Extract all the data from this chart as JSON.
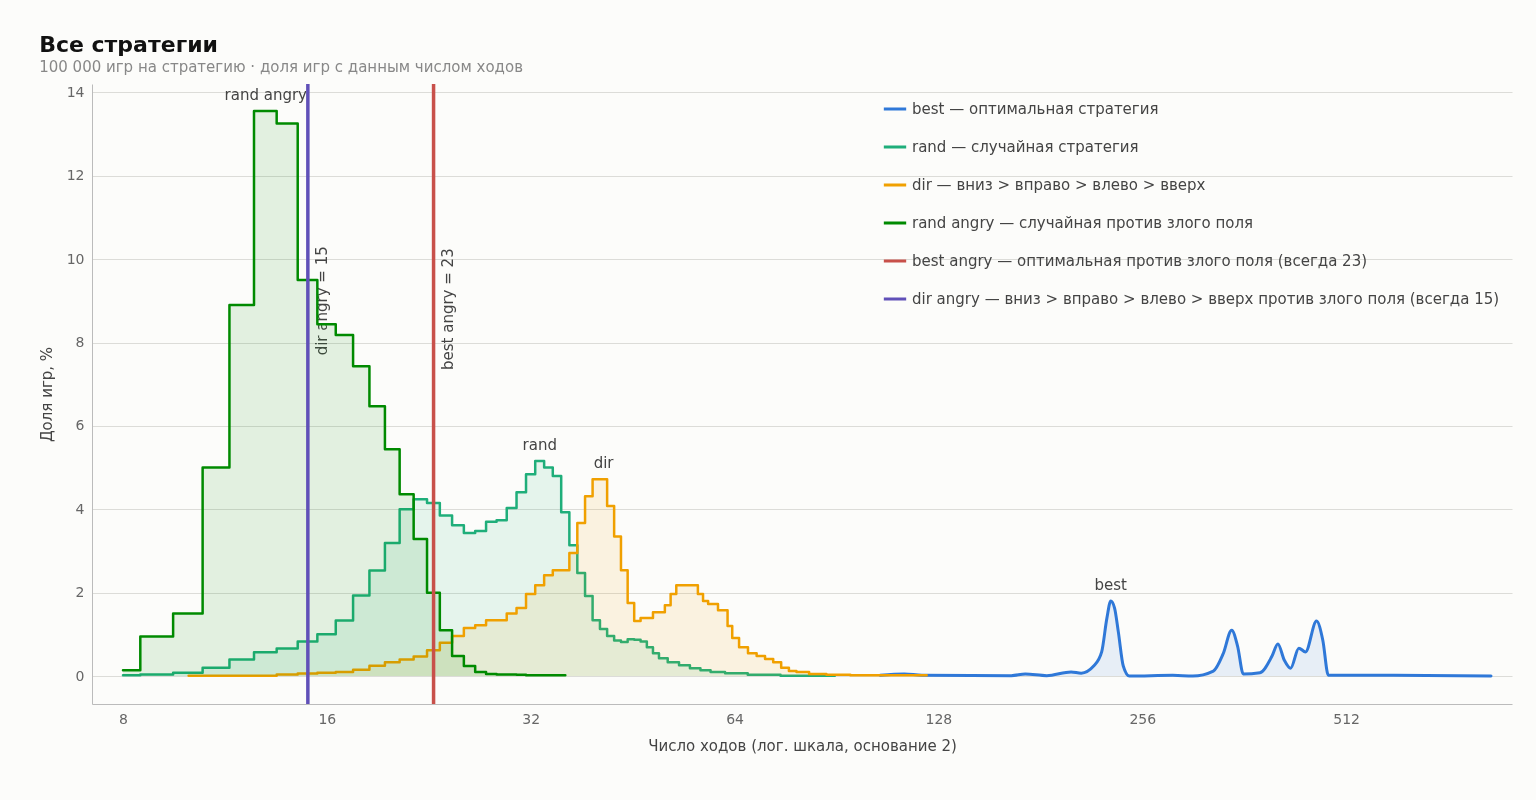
{
  "chart_data": {
    "type": "step",
    "title": "Все стратегии",
    "subtitle": "100 000 игр на стратегию · доля игр с данным числом ходов",
    "xlabel": "Число ходов (лог. шкала, основание 2)",
    "ylabel": "Доля игр, %",
    "log": "x",
    "xlim": [
      7.2,
      900
    ],
    "xticks": [
      8,
      16,
      32,
      64,
      128,
      256,
      512
    ],
    "ylim": [
      -0.67,
      14.2
    ],
    "yticks": [
      0,
      2,
      4,
      6,
      8,
      10,
      12,
      14
    ],
    "grid": "y",
    "legend": "top right",
    "series": [
      {
        "name": "best — оптимальная стратегия",
        "color": "#2f78d8",
        "type": "line",
        "x": [
          105,
          114,
          121,
          164,
          172,
          185,
          201,
          208,
          217,
          223,
          227,
          230,
          233,
          236,
          240,
          245,
          284,
          304,
          326,
          337,
          347,
          354,
          361,
          382,
          398,
          406,
          415,
          424,
          436,
          446,
          463,
          473,
          482,
          579,
          838
        ],
        "values": [
          0.02,
          0.05,
          0.02,
          0.01,
          0.05,
          0.01,
          0.1,
          0.07,
          0.24,
          0.58,
          1.39,
          1.8,
          1.63,
          1.06,
          0.24,
          0,
          0.02,
          0,
          0.12,
          0.53,
          1.1,
          0.72,
          0.05,
          0.08,
          0.48,
          0.77,
          0.38,
          0.19,
          0.67,
          0.58,
          1.32,
          0.86,
          0.02,
          0.02,
          0
        ]
      },
      {
        "name": "rand — случайная стратегия",
        "color": "#1fae7a",
        "x": [
          8,
          9,
          10,
          11,
          12,
          13,
          14,
          15,
          16,
          17,
          18,
          19,
          20,
          21,
          22,
          23,
          24,
          25,
          26,
          27,
          28,
          29,
          30,
          31,
          32,
          33,
          34,
          35,
          36,
          37,
          38,
          39,
          40,
          41,
          42,
          43,
          44,
          45,
          46,
          47,
          48,
          49,
          50,
          52,
          54,
          56,
          58,
          60,
          64,
          70,
          80,
          90
        ],
        "values": [
          0.02,
          0.04,
          0.08,
          0.2,
          0.4,
          0.57,
          0.66,
          0.83,
          1.0,
          1.33,
          1.93,
          2.53,
          3.19,
          4.0,
          4.24,
          4.15,
          3.85,
          3.62,
          3.43,
          3.48,
          3.7,
          3.74,
          4.03,
          4.41,
          4.84,
          5.16,
          5.0,
          4.8,
          3.93,
          3.14,
          2.47,
          1.92,
          1.34,
          1.13,
          0.96,
          0.85,
          0.82,
          0.88,
          0.87,
          0.83,
          0.69,
          0.55,
          0.43,
          0.33,
          0.26,
          0.19,
          0.14,
          0.1,
          0.07,
          0.03,
          0.01,
          0.01
        ]
      },
      {
        "name": "dir — вниз > вправо > влево > вверх",
        "color": "#f0a000",
        "x": [
          10,
          11,
          12,
          13,
          14,
          15,
          16,
          17,
          18,
          19,
          20,
          21,
          22,
          23,
          24,
          25,
          26,
          27,
          28,
          29,
          30,
          31,
          32,
          33,
          34,
          35,
          36,
          37,
          38,
          39,
          40,
          41,
          42,
          43,
          44,
          45,
          46,
          47,
          48,
          49,
          50,
          51,
          52,
          53,
          54,
          55,
          56,
          57,
          58,
          59,
          60,
          61,
          62,
          63,
          64,
          66,
          68,
          70,
          72,
          74,
          76,
          78,
          80,
          85,
          90,
          100,
          110,
          123
        ],
        "values": [
          0.01,
          0.01,
          0.01,
          0.01,
          0.04,
          0.06,
          0.08,
          0.1,
          0.15,
          0.25,
          0.33,
          0.4,
          0.47,
          0.62,
          0.8,
          0.96,
          1.15,
          1.22,
          1.34,
          1.34,
          1.5,
          1.63,
          1.97,
          2.18,
          2.42,
          2.54,
          2.54,
          2.95,
          3.67,
          4.31,
          4.72,
          4.72,
          4.08,
          3.35,
          2.54,
          1.75,
          1.32,
          1.39,
          1.39,
          1.53,
          1.53,
          1.7,
          1.97,
          2.18,
          2.18,
          2.18,
          2.18,
          1.97,
          1.8,
          1.73,
          1.73,
          1.58,
          1.58,
          1.2,
          0.91,
          0.69,
          0.55,
          0.48,
          0.41,
          0.33,
          0.2,
          0.12,
          0.1,
          0.05,
          0.03,
          0.02,
          0.02,
          0.02
        ]
      },
      {
        "name": "rand angry — случайная против злого поля",
        "color": "#008a00",
        "x": [
          8,
          9,
          10,
          11,
          12,
          13,
          14,
          15,
          16,
          17,
          18,
          19,
          20,
          21,
          22,
          23,
          24,
          25,
          26,
          27,
          28,
          29,
          30,
          31,
          32,
          33,
          34,
          35,
          36
        ],
        "values": [
          0.14,
          0.95,
          1.5,
          5.0,
          8.9,
          13.55,
          13.25,
          9.5,
          8.44,
          8.18,
          7.43,
          6.47,
          5.44,
          4.36,
          3.29,
          2.0,
          1.1,
          0.48,
          0.24,
          0.1,
          0.05,
          0.04,
          0.04,
          0.03,
          0.02,
          0.02,
          0.02,
          0.02,
          0.02
        ]
      },
      {
        "name": "best angry — оптимальная против злого поля (всегда 23)",
        "color": "#c8504a",
        "type": "line",
        "x": [
          23,
          23
        ],
        "values": [
          -0.67,
          14.2
        ]
      },
      {
        "name": "dir angry — вниз > вправо > влево > вверх против злого поля (всегда 15)",
        "color": "#6050b8",
        "type": "line",
        "x": [
          15,
          15
        ],
        "values": [
          -0.67,
          14.2
        ]
      }
    ],
    "annotations": [
      {
        "text": "rand angry",
        "x": 13,
        "y": 13.55
      },
      {
        "text": "rand",
        "x": 33,
        "y": 5.16
      },
      {
        "text": "dir",
        "x": 41,
        "y": 4.72
      },
      {
        "text": "best",
        "x": 230,
        "y": 1.8
      },
      {
        "text": "best angry = 23",
        "x": 23,
        "y": 8.8
      },
      {
        "text": "dir angry = 15",
        "x": 15,
        "y": 9.0
      }
    ]
  }
}
